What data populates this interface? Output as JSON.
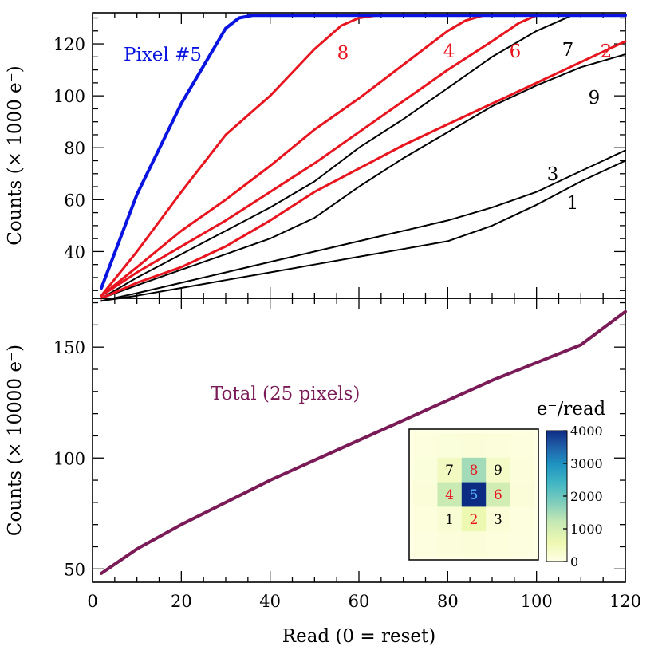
{
  "chart_data": [
    {
      "type": "line",
      "panel": "top",
      "ylabel": "Counts (× 1000 e⁻)",
      "xlabel": "",
      "xlim": [
        0,
        120
      ],
      "ylim": [
        22,
        132
      ],
      "yticks": [
        40,
        60,
        80,
        100,
        120
      ],
      "xticks": [
        0,
        20,
        40,
        60,
        80,
        100,
        120
      ],
      "series": [
        {
          "name": "Pixel #5",
          "label": "Pixel #5",
          "color": "#0a14e0",
          "width": 4,
          "points": [
            [
              2,
              26
            ],
            [
              10,
              62
            ],
            [
              20,
              97
            ],
            [
              30,
              126
            ],
            [
              33,
              130
            ],
            [
              36,
              131
            ],
            [
              120,
              131
            ]
          ]
        },
        {
          "name": "pixel 8",
          "label": "8",
          "color": "#e8141e",
          "width": 3,
          "points": [
            [
              2,
              23
            ],
            [
              10,
              40
            ],
            [
              20,
              63
            ],
            [
              30,
              85
            ],
            [
              40,
              100
            ],
            [
              50,
              118
            ],
            [
              56,
              127
            ],
            [
              60,
              130
            ],
            [
              64,
              131
            ],
            [
              120,
              131
            ]
          ]
        },
        {
          "name": "pixel 4",
          "label": "4",
          "color": "#e8141e",
          "width": 3,
          "points": [
            [
              2,
              23
            ],
            [
              10,
              34
            ],
            [
              20,
              48
            ],
            [
              30,
              60
            ],
            [
              40,
              73
            ],
            [
              50,
              87
            ],
            [
              60,
              99
            ],
            [
              70,
              112
            ],
            [
              80,
              125
            ],
            [
              84,
              129
            ],
            [
              88,
              131
            ],
            [
              120,
              131
            ]
          ]
        },
        {
          "name": "pixel 6",
          "label": "6",
          "color": "#e8141e",
          "width": 3,
          "points": [
            [
              2,
              23
            ],
            [
              10,
              32
            ],
            [
              20,
              42
            ],
            [
              30,
              52
            ],
            [
              40,
              63
            ],
            [
              50,
              74
            ],
            [
              60,
              86
            ],
            [
              70,
              98
            ],
            [
              80,
              110
            ],
            [
              90,
              121
            ],
            [
              96,
              128
            ],
            [
              100,
              131
            ],
            [
              120,
              131
            ]
          ]
        },
        {
          "name": "pixel 7",
          "label": "7",
          "color": "#000000",
          "width": 2,
          "points": [
            [
              2,
              22
            ],
            [
              10,
              30
            ],
            [
              20,
              39
            ],
            [
              30,
              48
            ],
            [
              40,
              57
            ],
            [
              50,
              67
            ],
            [
              60,
              80
            ],
            [
              70,
              91
            ],
            [
              80,
              103
            ],
            [
              90,
              115
            ],
            [
              100,
              125
            ],
            [
              108,
              131
            ],
            [
              120,
              131
            ]
          ]
        },
        {
          "name": "pixel 2",
          "label": "2",
          "color": "#e8141e",
          "width": 3,
          "points": [
            [
              2,
              22
            ],
            [
              10,
              28
            ],
            [
              20,
              34
            ],
            [
              30,
              42
            ],
            [
              40,
              52
            ],
            [
              50,
              63
            ],
            [
              60,
              72
            ],
            [
              70,
              81
            ],
            [
              80,
              89
            ],
            [
              90,
              97
            ],
            [
              100,
              105
            ],
            [
              110,
              113
            ],
            [
              120,
              121
            ]
          ]
        },
        {
          "name": "pixel 9",
          "label": "9",
          "color": "#000000",
          "width": 2,
          "points": [
            [
              2,
              22
            ],
            [
              10,
              27
            ],
            [
              20,
              33
            ],
            [
              30,
              39
            ],
            [
              40,
              45
            ],
            [
              50,
              53
            ],
            [
              60,
              65
            ],
            [
              70,
              76
            ],
            [
              80,
              86
            ],
            [
              90,
              96
            ],
            [
              100,
              104
            ],
            [
              110,
              111
            ],
            [
              120,
              116
            ]
          ]
        },
        {
          "name": "pixel 3",
          "label": "3",
          "color": "#000000",
          "width": 2,
          "points": [
            [
              2,
              21
            ],
            [
              10,
              24
            ],
            [
              20,
              28
            ],
            [
              30,
              32
            ],
            [
              40,
              36
            ],
            [
              50,
              40
            ],
            [
              60,
              44
            ],
            [
              70,
              48
            ],
            [
              80,
              52
            ],
            [
              90,
              57
            ],
            [
              100,
              63
            ],
            [
              110,
              71
            ],
            [
              120,
              79
            ]
          ]
        },
        {
          "name": "pixel 1",
          "label": "1",
          "color": "#000000",
          "width": 2,
          "points": [
            [
              2,
              21
            ],
            [
              10,
              23
            ],
            [
              20,
              26
            ],
            [
              30,
              29
            ],
            [
              40,
              32
            ],
            [
              50,
              35
            ],
            [
              60,
              38
            ],
            [
              70,
              41
            ],
            [
              80,
              44
            ],
            [
              90,
              50
            ],
            [
              100,
              58
            ],
            [
              110,
              67
            ],
            [
              120,
              75
            ]
          ]
        }
      ]
    },
    {
      "type": "line",
      "panel": "bottom",
      "ylabel": "Counts (× 10000 e⁻)",
      "xlabel": "Read (0 = reset)",
      "xlim": [
        0,
        120
      ],
      "ylim": [
        44,
        172
      ],
      "yticks": [
        50,
        100,
        150
      ],
      "xticks": [
        0,
        20,
        40,
        60,
        80,
        100,
        120
      ],
      "series": [
        {
          "name": "Total (25 pixels)",
          "label": "Total (25 pixels)",
          "color": "#7a1a56",
          "width": 4,
          "points": [
            [
              2,
              48
            ],
            [
              10,
              59
            ],
            [
              20,
              70
            ],
            [
              30,
              80
            ],
            [
              40,
              90
            ],
            [
              50,
              99
            ],
            [
              60,
              108
            ],
            [
              70,
              117
            ],
            [
              80,
              126
            ],
            [
              90,
              135
            ],
            [
              100,
              143
            ],
            [
              110,
              151
            ],
            [
              120,
              166
            ]
          ]
        }
      ]
    },
    {
      "type": "heatmap",
      "title": "e⁻/read",
      "grid_size": 5,
      "colorbar": {
        "min": 0,
        "max": 4000,
        "ticks": [
          0,
          1000,
          2000,
          3000,
          4000
        ]
      },
      "cells": [
        [
          80,
          120,
          150,
          110,
          80
        ],
        [
          120,
          420,
          1500,
          350,
          110
        ],
        [
          140,
          1150,
          4000,
          1050,
          150
        ],
        [
          100,
          200,
          600,
          180,
          90
        ],
        [
          70,
          110,
          160,
          100,
          70
        ]
      ],
      "labels": [
        {
          "text": "7",
          "row": 1,
          "col": 1,
          "color": "#000000"
        },
        {
          "text": "8",
          "row": 1,
          "col": 2,
          "color": "#e8141e"
        },
        {
          "text": "9",
          "row": 1,
          "col": 3,
          "color": "#000000"
        },
        {
          "text": "4",
          "row": 2,
          "col": 1,
          "color": "#e8141e"
        },
        {
          "text": "5",
          "row": 2,
          "col": 2,
          "color": "#5ab4ff"
        },
        {
          "text": "6",
          "row": 2,
          "col": 3,
          "color": "#e8141e"
        },
        {
          "text": "1",
          "row": 3,
          "col": 1,
          "color": "#000000"
        },
        {
          "text": "2",
          "row": 3,
          "col": 2,
          "color": "#e8141e"
        },
        {
          "text": "3",
          "row": 3,
          "col": 3,
          "color": "#000000"
        }
      ]
    }
  ]
}
